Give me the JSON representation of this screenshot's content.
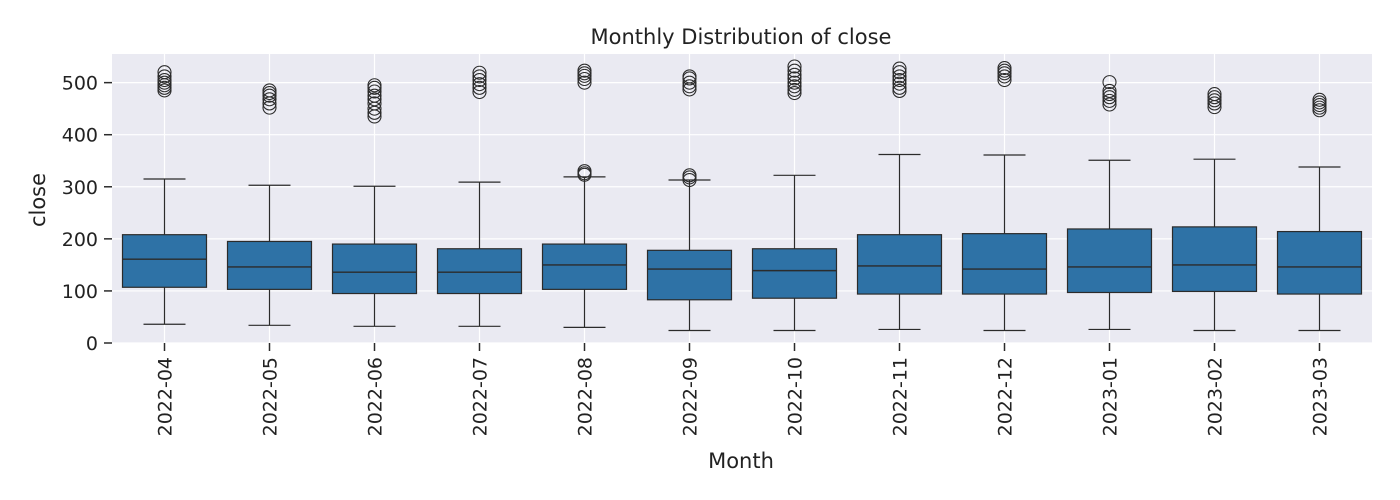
{
  "chart_data": {
    "type": "box",
    "title": "Monthly Distribution of close",
    "xlabel": "Month",
    "ylabel": "close",
    "ylim": [
      0,
      555
    ],
    "yticks": [
      0,
      100,
      200,
      300,
      400,
      500
    ],
    "grid": true,
    "legend": "none",
    "colors": {
      "box_fill": "#2e72a6",
      "line": "#2b2b2b",
      "plot_bg": "#eaeaf2",
      "grid": "#ffffff",
      "text": "#222222"
    },
    "categories": [
      "2022-04",
      "2022-05",
      "2022-06",
      "2022-07",
      "2022-08",
      "2022-09",
      "2022-10",
      "2022-11",
      "2022-12",
      "2023-01",
      "2023-02",
      "2023-03"
    ],
    "boxes": [
      {
        "month": "2022-04",
        "whisker_low": 36,
        "q1": 107,
        "median": 161,
        "q3": 208,
        "whisker_high": 315,
        "outliers": [
          485,
          490,
          495,
          500,
          505,
          512,
          520
        ]
      },
      {
        "month": "2022-05",
        "whisker_low": 34,
        "q1": 103,
        "median": 146,
        "q3": 195,
        "whisker_high": 303,
        "outliers": [
          452,
          460,
          468,
          475,
          480,
          485
        ]
      },
      {
        "month": "2022-06",
        "whisker_low": 32,
        "q1": 95,
        "median": 136,
        "q3": 190,
        "whisker_high": 301,
        "outliers": [
          435,
          442,
          450,
          460,
          468,
          475,
          483,
          490,
          495
        ]
      },
      {
        "month": "2022-07",
        "whisker_low": 32,
        "q1": 95,
        "median": 136,
        "q3": 181,
        "whisker_high": 309,
        "outliers": [
          482,
          490,
          497,
          505,
          512,
          519
        ]
      },
      {
        "month": "2022-08",
        "whisker_low": 30,
        "q1": 103,
        "median": 150,
        "q3": 190,
        "whisker_high": 319,
        "outliers": [
          323,
          326,
          330,
          500,
          507,
          513,
          518,
          523
        ]
      },
      {
        "month": "2022-09",
        "whisker_low": 24,
        "q1": 83,
        "median": 142,
        "q3": 178,
        "whisker_high": 313,
        "outliers": [
          313,
          318,
          322,
          487,
          493,
          500,
          508,
          512
        ]
      },
      {
        "month": "2022-10",
        "whisker_low": 24,
        "q1": 86,
        "median": 139,
        "q3": 181,
        "whisker_high": 322,
        "outliers": [
          480,
          486,
          493,
          500,
          508,
          515,
          523,
          531
        ]
      },
      {
        "month": "2022-11",
        "whisker_low": 26,
        "q1": 94,
        "median": 148,
        "q3": 208,
        "whisker_high": 362,
        "outliers": [
          484,
          490,
          498,
          505,
          512,
          520,
          527
        ]
      },
      {
        "month": "2022-12",
        "whisker_low": 24,
        "q1": 94,
        "median": 142,
        "q3": 210,
        "whisker_high": 361,
        "outliers": [
          505,
          512,
          518,
          523,
          528
        ]
      },
      {
        "month": "2023-01",
        "whisker_low": 26,
        "q1": 97,
        "median": 146,
        "q3": 219,
        "whisker_high": 351,
        "outliers": [
          458,
          465,
          472,
          478,
          484,
          501
        ]
      },
      {
        "month": "2023-02",
        "whisker_low": 24,
        "q1": 99,
        "median": 150,
        "q3": 223,
        "whisker_high": 353,
        "outliers": [
          453,
          460,
          466,
          472,
          478
        ]
      },
      {
        "month": "2023-03",
        "whisker_low": 24,
        "q1": 94,
        "median": 146,
        "q3": 214,
        "whisker_high": 338,
        "outliers": [
          447,
          452,
          457,
          462,
          467
        ]
      }
    ]
  }
}
